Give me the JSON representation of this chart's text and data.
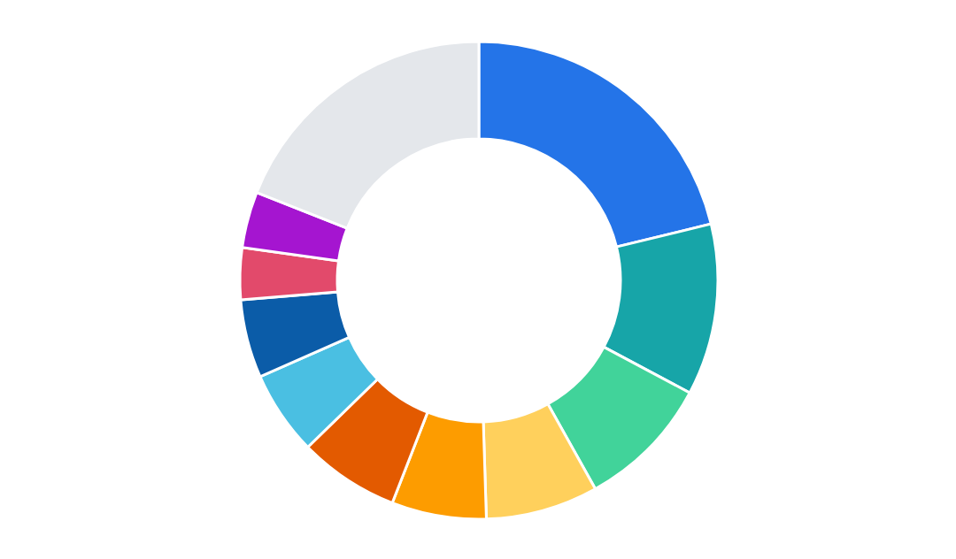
{
  "chart_data": {
    "type": "donut",
    "categories": [
      null,
      null,
      null,
      null,
      null,
      null,
      null,
      null,
      null,
      null,
      null
    ],
    "values": [
      21.2,
      11.6,
      9.1,
      7.6,
      6.4,
      6.8,
      5.7,
      5.3,
      3.5,
      3.8,
      19.0
    ],
    "colors": [
      "#2474e8",
      "#17a5a8",
      "#41d39a",
      "#ffd05c",
      "#fd9c00",
      "#e35a00",
      "#4abfe2",
      "#0b5ca8",
      "#e24a6b",
      "#a515d0",
      "#e4e7eb"
    ]
  }
}
